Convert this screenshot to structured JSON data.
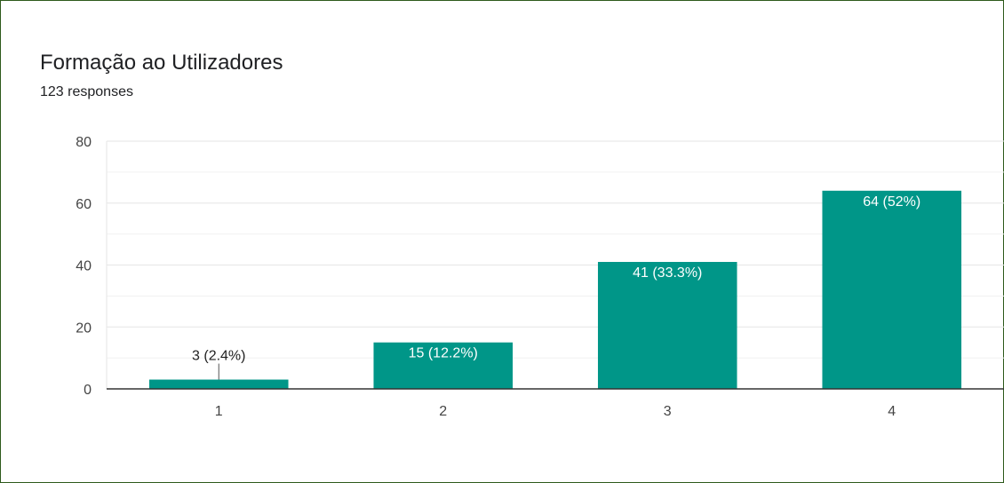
{
  "header": {
    "title": "Formação ao Utilizadores",
    "subtitle": "123 responses"
  },
  "colors": {
    "bar": "#009688",
    "grid": "#e6e6e6",
    "grid_minor": "#f1f1f1",
    "axis": "#333333",
    "tick_text": "#444444",
    "label_inside": "#ffffff",
    "label_outside": "#222222"
  },
  "chart_data": {
    "type": "bar",
    "title": "Formação ao Utilizadores",
    "categories": [
      "1",
      "2",
      "3",
      "4"
    ],
    "values": [
      3,
      15,
      41,
      64
    ],
    "data_labels": [
      "3 (2.4%)",
      "15 (12.2%)",
      "41 (33.3%)",
      "64 (52%)"
    ],
    "ylim": [
      0,
      80
    ],
    "yticks": [
      0,
      20,
      40,
      60,
      80
    ],
    "grid": true,
    "xlabel": "",
    "ylabel": ""
  }
}
